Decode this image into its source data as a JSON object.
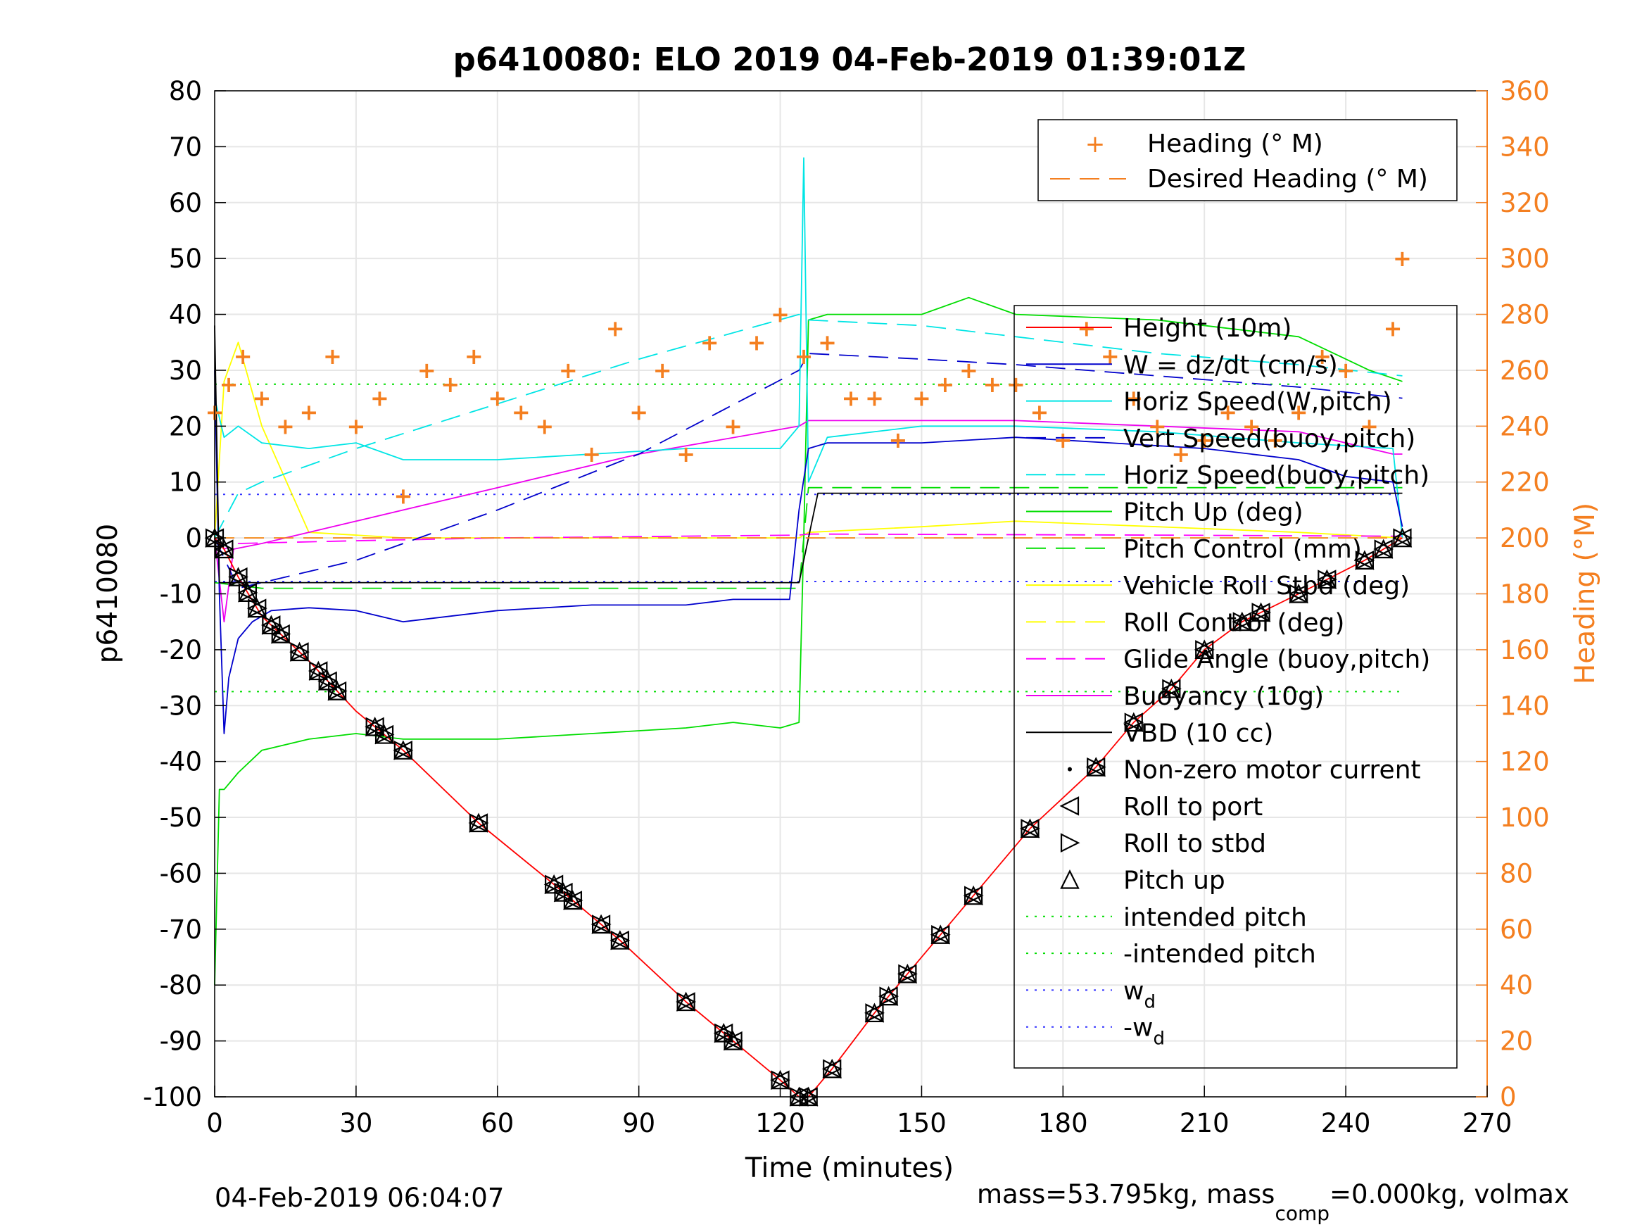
{
  "chart_data": {
    "type": "line",
    "title": "p6410080: ELO 2019 04-Feb-2019 01:39:01Z",
    "xlabel": "Time (minutes)",
    "ylabel": "p6410080",
    "y2label": "Heading (°M)",
    "xlim": [
      0,
      270
    ],
    "ylim": [
      -100,
      80
    ],
    "y2lim": [
      0,
      360
    ],
    "xticks": [
      "0",
      "30",
      "60",
      "90",
      "120",
      "150",
      "180",
      "210",
      "240",
      "270"
    ],
    "yticks": [
      "80",
      "70",
      "60",
      "50",
      "40",
      "30",
      "20",
      "10",
      "0",
      "-10",
      "-20",
      "-30",
      "-40",
      "-50",
      "-60",
      "-70",
      "-80",
      "-90",
      "-100"
    ],
    "y2ticks": [
      "360",
      "340",
      "320",
      "300",
      "280",
      "260",
      "240",
      "220",
      "200",
      "180",
      "160",
      "140",
      "120",
      "100",
      "80",
      "60",
      "40",
      "20",
      "0"
    ],
    "grid": true,
    "colors": {
      "axis_right": "#f47f20",
      "height": "#ff0000",
      "w": "#0000cc",
      "horiz_speed": "#00e5e5",
      "pitch": "#00dd00",
      "roll": "#ffff00",
      "glide": "#ff00ff",
      "buoyancy": "#ee00ee",
      "vbd": "#000000",
      "heading": "#f47f20",
      "wd": "#3333ff"
    },
    "legend_right_axis": {
      "placement": "top-right",
      "entries": [
        "Heading (° M)",
        "Desired Heading (° M)"
      ]
    },
    "legend": {
      "placement": "right",
      "entries": [
        "Height (10m)",
        "W = dz/dt (cm/s)",
        "Horiz Speed(W,pitch)",
        "Vert Speed(buoy,pitch)",
        "Horiz Speed(buoy,pitch)",
        "Pitch Up (deg)",
        "Pitch Control (mm)",
        "Vehicle Roll Stbd (deg)",
        "Roll Control (deg)",
        "Glide Angle (buoy,pitch)",
        "Buoyancy (10g)",
        "VBD (10 cc)",
        "Non-zero motor current",
        "Roll to port",
        "Roll to stbd",
        "Pitch up",
        "intended pitch",
        "-intended pitch",
        "w_d",
        "-w_d"
      ]
    },
    "series": [
      {
        "name": "Height (10m)",
        "x": [
          0,
          2,
          5,
          10,
          20,
          30,
          40,
          56,
          72,
          86,
          100,
          110,
          120,
          124,
          126,
          131,
          140,
          147,
          154,
          161,
          173,
          187,
          195,
          203,
          210,
          218,
          230,
          244,
          252
        ],
        "y": [
          0,
          -2,
          -7,
          -14,
          -22,
          -31,
          -38,
          -51,
          -62,
          -72,
          -83,
          -90,
          -97,
          -100,
          -100,
          -95,
          -85,
          -78,
          -71,
          -64,
          -52,
          -41,
          -33,
          -27,
          -20,
          -15,
          -10,
          -4,
          0
        ]
      },
      {
        "name": "W = dz/dt (cm/s)",
        "x": [
          0,
          1,
          2,
          3,
          5,
          8,
          12,
          20,
          30,
          40,
          60,
          80,
          100,
          110,
          122,
          124,
          126,
          130,
          150,
          170,
          190,
          210,
          230,
          240,
          250,
          252
        ],
        "y": [
          30,
          -10,
          -35,
          -25,
          -18,
          -15,
          -13,
          -12.5,
          -13,
          -15,
          -13,
          -12,
          -12,
          -11,
          -11,
          5,
          16,
          17,
          17,
          18,
          17,
          16,
          14,
          11,
          10,
          2
        ]
      },
      {
        "name": "Horiz Speed(W,pitch)",
        "x": [
          0,
          2,
          5,
          10,
          20,
          30,
          40,
          60,
          80,
          100,
          120,
          124,
          125,
          126,
          130,
          150,
          170,
          200,
          230,
          250,
          252
        ],
        "y": [
          25,
          18,
          20,
          17,
          16,
          17,
          14,
          14,
          15,
          16,
          16,
          20,
          68,
          10,
          18,
          20,
          20,
          19,
          17,
          16,
          0
        ]
      },
      {
        "name": "Vert Speed(buoy,pitch)",
        "x": [
          0,
          5,
          10,
          30,
          60,
          90,
          124,
          126,
          150,
          170,
          200,
          230,
          252
        ],
        "y": [
          0,
          -9,
          -8,
          -4,
          5,
          15,
          30,
          33,
          32,
          31,
          29,
          27,
          25
        ]
      },
      {
        "name": "Horiz Speed(buoy,pitch)",
        "x": [
          0,
          5,
          10,
          30,
          60,
          90,
          124,
          126,
          150,
          170,
          200,
          230,
          252
        ],
        "y": [
          0,
          8,
          10,
          16,
          24,
          32,
          40,
          39,
          38,
          36,
          33,
          31,
          29
        ]
      },
      {
        "name": "Pitch Up (deg)",
        "x": [
          0,
          1,
          2,
          5,
          10,
          20,
          30,
          40,
          60,
          80,
          100,
          110,
          120,
          124,
          125,
          126,
          130,
          150,
          160,
          170,
          200,
          230,
          245,
          252
        ],
        "y": [
          -80,
          -45,
          -45,
          -42,
          -38,
          -36,
          -35,
          -36,
          -36,
          -35,
          -34,
          -33,
          -34,
          -33,
          0,
          39,
          40,
          40,
          43,
          40,
          39,
          36,
          30,
          28
        ]
      },
      {
        "name": "Pitch Control (mm)",
        "x": [
          0,
          10,
          124,
          126,
          252
        ],
        "y": [
          -8,
          -9,
          -9,
          9,
          9
        ]
      },
      {
        "name": "Vehicle Roll Stbd (deg)",
        "x": [
          0,
          2,
          5,
          10,
          20,
          40,
          60,
          80,
          100,
          124,
          126,
          150,
          170,
          200,
          230,
          252
        ],
        "y": [
          0,
          28,
          35,
          20,
          1,
          0,
          0,
          0,
          0,
          0,
          1,
          2,
          3,
          2,
          1,
          0
        ]
      },
      {
        "name": "Roll Control (deg)",
        "x": [
          0,
          10,
          40,
          80,
          120,
          126,
          160,
          200,
          230,
          252
        ],
        "y": [
          0,
          0,
          0,
          0,
          0,
          0,
          0,
          0,
          0,
          0
        ]
      },
      {
        "name": "Glide Angle (buoy,pitch)",
        "x": [
          0,
          2,
          5,
          30,
          60,
          124,
          126,
          200,
          252
        ],
        "y": [
          0,
          -2,
          -1,
          -0.5,
          0,
          0.5,
          0.7,
          0.5,
          0.3
        ]
      },
      {
        "name": "Buoyancy (10g)",
        "x": [
          0,
          2,
          4,
          10,
          30,
          60,
          90,
          124,
          126,
          150,
          170,
          200,
          230,
          250,
          252
        ],
        "y": [
          0,
          -15,
          -2,
          -1,
          3,
          9,
          15,
          20,
          21,
          21,
          21,
          20,
          19,
          15,
          15
        ]
      },
      {
        "name": "VBD (10 cc)",
        "x": [
          0,
          1,
          2,
          10,
          30,
          60,
          90,
          124,
          126,
          128,
          160,
          200,
          230,
          252
        ],
        "y": [
          38,
          -8,
          -8,
          -8,
          -8,
          -8,
          -8,
          -8,
          0,
          8,
          8,
          8,
          8,
          8
        ]
      },
      {
        "name": "Heading (° M)",
        "axis": "right",
        "x": [
          0,
          3,
          6,
          10,
          15,
          20,
          25,
          30,
          35,
          40,
          45,
          50,
          55,
          60,
          65,
          70,
          75,
          80,
          85,
          90,
          95,
          100,
          105,
          110,
          115,
          120,
          125,
          130,
          135,
          140,
          145,
          150,
          155,
          160,
          165,
          170,
          175,
          180,
          185,
          190,
          195,
          200,
          205,
          210,
          215,
          220,
          225,
          230,
          235,
          240,
          245,
          250,
          252
        ],
        "y": [
          245,
          255,
          265,
          250,
          240,
          245,
          265,
          240,
          250,
          215,
          260,
          255,
          265,
          250,
          245,
          240,
          260,
          230,
          275,
          245,
          260,
          230,
          270,
          240,
          270,
          280,
          265,
          270,
          250,
          250,
          235,
          250,
          255,
          260,
          255,
          255,
          245,
          235,
          275,
          265,
          250,
          240,
          230,
          235,
          245,
          240,
          235,
          245,
          265,
          260,
          240,
          275,
          300
        ]
      },
      {
        "name": "Desired Heading (° M)",
        "axis": "right",
        "x": [
          0,
          252
        ],
        "y": [
          200,
          200
        ]
      },
      {
        "name": "intended pitch",
        "x": [
          0,
          252
        ],
        "y": [
          27.5,
          27.5
        ]
      },
      {
        "name": "-intended pitch",
        "x": [
          0,
          252
        ],
        "y": [
          -27.5,
          -27.5
        ]
      },
      {
        "name": "w_d",
        "x": [
          0,
          252
        ],
        "y": [
          7.8,
          7.8
        ]
      },
      {
        "name": "-w_d",
        "x": [
          0,
          252
        ],
        "y": [
          -7.8,
          -7.8
        ]
      }
    ],
    "markers": {
      "roll_marks_x": [
        0,
        2,
        5,
        7,
        9,
        12,
        14,
        18,
        22,
        24,
        26,
        34,
        36,
        40,
        56,
        72,
        74,
        76,
        82,
        86,
        100,
        108,
        110,
        120,
        124,
        126,
        131,
        140,
        143,
        147,
        154,
        161,
        173,
        187,
        195,
        203,
        210,
        218,
        222,
        230,
        236,
        244,
        248,
        252
      ]
    },
    "footer_left": "04-Feb-2019 06:04:07",
    "footer_right": "mass=53.795kg, mass",
    "footer_right_sub": "comp",
    "footer_right_tail": "=0.000kg, volmax"
  }
}
